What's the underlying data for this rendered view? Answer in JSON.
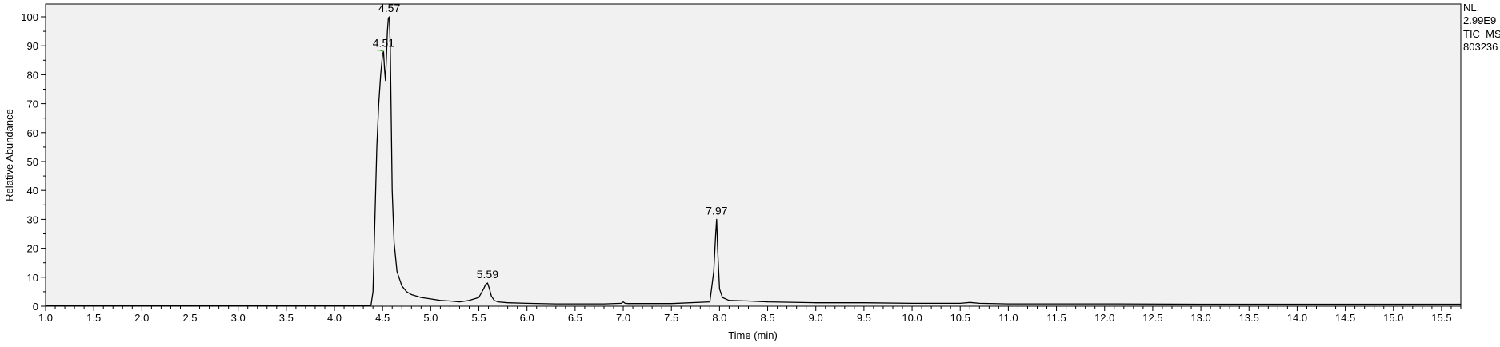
{
  "chart_data": {
    "type": "line",
    "xlabel": "Time (min)",
    "ylabel": "Relative Abundance",
    "xlim": [
      1.0,
      15.7
    ],
    "ylim": [
      0,
      100
    ],
    "x_ticks": [
      "1.0",
      "1.5",
      "2.0",
      "2.5",
      "3.0",
      "3.5",
      "4.0",
      "4.5",
      "5.0",
      "5.5",
      "6.0",
      "6.5",
      "7.0",
      "7.5",
      "8.0",
      "8.5",
      "9.0",
      "9.5",
      "10.0",
      "10.5",
      "11.0",
      "11.5",
      "12.0",
      "12.5",
      "13.0",
      "13.5",
      "14.0",
      "14.5",
      "15.0",
      "15.5"
    ],
    "y_ticks": [
      "0",
      "10",
      "20",
      "30",
      "40",
      "50",
      "60",
      "70",
      "80",
      "90",
      "100"
    ],
    "info": [
      "NL:",
      "2.99E9",
      "TIC  MS",
      "803236"
    ],
    "peak_labels": [
      {
        "text": "4.51",
        "x": 4.51,
        "y": 88
      },
      {
        "text": "4.57",
        "x": 4.57,
        "y": 100
      },
      {
        "text": "5.59",
        "x": 5.59,
        "y": 8
      },
      {
        "text": "7.97",
        "x": 7.97,
        "y": 30
      }
    ],
    "series": [
      {
        "color": "#000000",
        "x": [
          1.0,
          3.0,
          4.38,
          4.4,
          4.42,
          4.44,
          4.46,
          4.48,
          4.5,
          4.51,
          4.52,
          4.53,
          4.54,
          4.55,
          4.56,
          4.57,
          4.58,
          4.59,
          4.6,
          4.62,
          4.65,
          4.7,
          4.75,
          4.8,
          4.9,
          5.0,
          5.1,
          5.2,
          5.3,
          5.4,
          5.5,
          5.55,
          5.57,
          5.59,
          5.61,
          5.63,
          5.66,
          5.7,
          5.8,
          6.0,
          6.3,
          6.5,
          6.8,
          6.98,
          7.0,
          7.02,
          7.05,
          7.5,
          7.9,
          7.94,
          7.96,
          7.97,
          7.98,
          8.0,
          8.03,
          8.1,
          8.3,
          8.5,
          9.0,
          9.5,
          10.0,
          10.5,
          10.6,
          10.7,
          11.0,
          12.0,
          13.0,
          14.0,
          15.0,
          15.7
        ],
        "y": [
          0.2,
          0.2,
          0.3,
          5,
          30,
          55,
          70,
          80,
          87,
          88,
          82,
          78,
          86,
          95,
          99.5,
          100,
          90,
          65,
          40,
          22,
          12,
          7,
          5,
          4,
          3,
          2.5,
          2,
          1.8,
          1.5,
          2,
          3,
          6,
          7.5,
          8,
          6,
          3.5,
          2,
          1.5,
          1.2,
          1,
          0.8,
          0.8,
          0.8,
          1,
          1.5,
          1.0,
          0.9,
          0.9,
          1.5,
          12,
          25,
          30,
          20,
          6,
          3,
          2,
          1.8,
          1.5,
          1.2,
          1.2,
          1.0,
          1.0,
          1.3,
          1.0,
          0.8,
          0.8,
          0.7,
          0.7,
          0.7,
          0.7
        ]
      },
      {
        "color": "#3a9a3a",
        "x": [
          4.44,
          4.47,
          4.51
        ],
        "y": [
          88.5,
          88.5,
          88
        ]
      }
    ]
  }
}
